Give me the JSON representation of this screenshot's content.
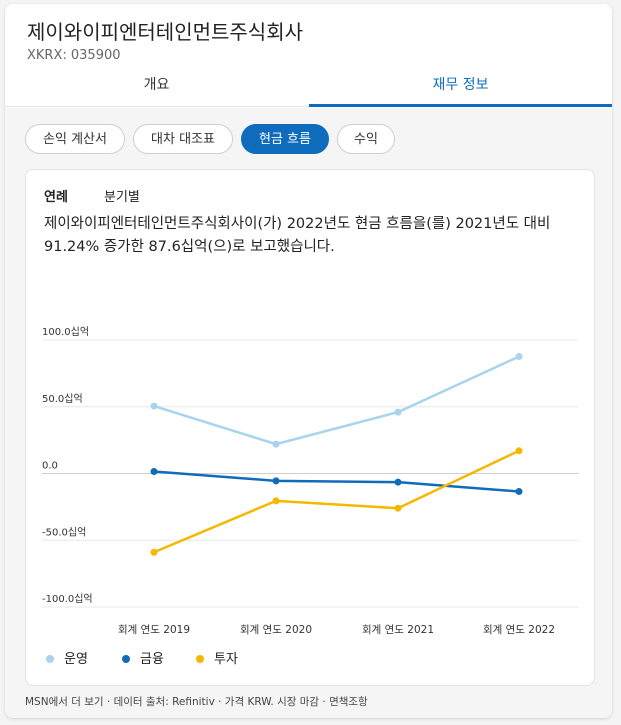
{
  "header": {
    "company": "제이와이피엔터테인먼트주식회사",
    "ticker": "XKRX: 035900"
  },
  "tabs": [
    "개요",
    "재무 정보"
  ],
  "statement_tabs": [
    "손익 계산서",
    "대차 대조표",
    "현금 흐름",
    "수익"
  ],
  "period_tabs": [
    "연례",
    "분기별"
  ],
  "summary": "제이와이피엔터테인먼트주식회사이(가) 2022년도 현금 흐름을(를) 2021년도 대비 91.24% 증가한 87.6십억(으)로 보고했습니다.",
  "colors": {
    "accent": "#0f6cbd",
    "operating": "#a8d4f0",
    "financing": "#0f6cbd",
    "investing": "#f5b800"
  },
  "chart_data": {
    "type": "line",
    "categories": [
      "회계 연도 2019",
      "회계 연도 2020",
      "회계 연도 2021",
      "회계 연도 2022"
    ],
    "y_tick_labels": [
      "100.0십억",
      "50.0십억",
      "0.0",
      "-50.0십억",
      "-100.0십억"
    ],
    "y_ticks": [
      100,
      50,
      0,
      -50,
      -100
    ],
    "ylim": [
      -100,
      100
    ],
    "series": [
      {
        "name": "운영",
        "color": "#a8d4f0",
        "values": [
          50.5,
          22,
          46,
          87.6
        ]
      },
      {
        "name": "금융",
        "color": "#0f6cbd",
        "values": [
          1.5,
          -5.5,
          -6.5,
          -13.5
        ]
      },
      {
        "name": "투자",
        "color": "#f5b800",
        "values": [
          -59,
          -20.5,
          -26,
          17
        ]
      }
    ],
    "legend_position": "bottom-left",
    "grid": true
  },
  "footer": "MSN에서 더 보기 · 데이터 출처: Refinitiv · 가격 KRW. 시장 마감 · 면책조항"
}
